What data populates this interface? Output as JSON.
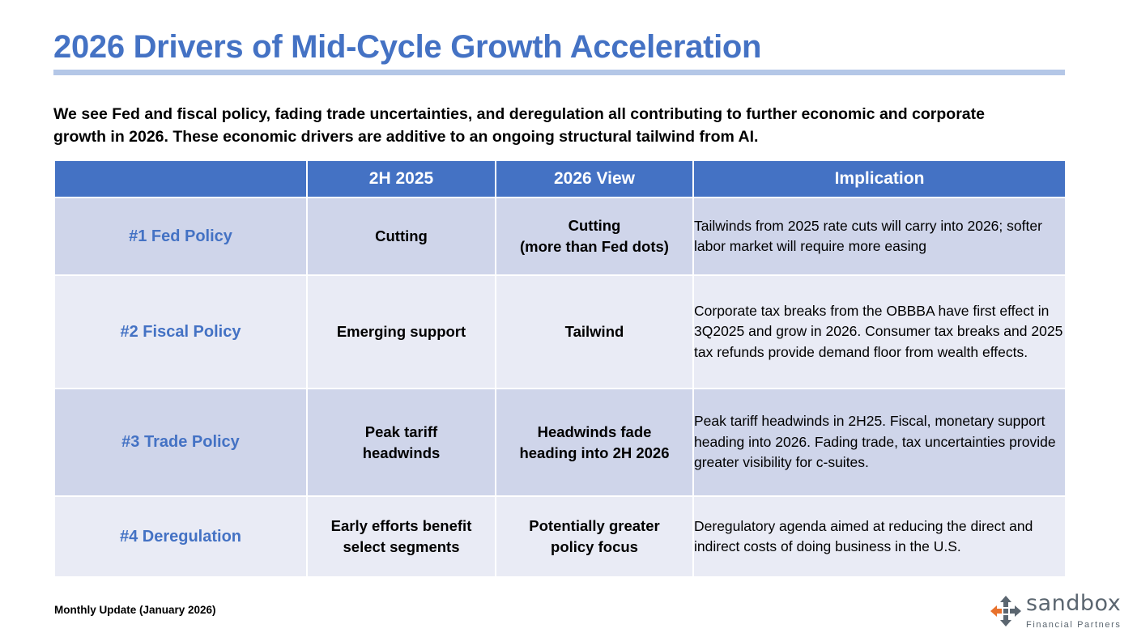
{
  "title": "2026 Drivers of Mid-Cycle Growth Acceleration",
  "intro": "We see Fed and fiscal policy, fading trade uncertainties, and deregulation all contributing to further economic and corporate growth in 2026. These economic drivers are additive to an ongoing structural tailwind from AI.",
  "table": {
    "headers": [
      "",
      "2H 2025",
      "2026 View",
      "Implication"
    ],
    "rows": [
      {
        "driver": "#1 Fed Policy",
        "h2_2025": "Cutting",
        "view_2026": "Cutting\n(more than Fed dots)",
        "implication": "Tailwinds from 2025 rate cuts will carry into 2026; softer labor market will require more easing"
      },
      {
        "driver": "#2 Fiscal Policy",
        "h2_2025": "Emerging support",
        "view_2026": "Tailwind",
        "implication": "Corporate tax breaks from the OBBBA have first effect in 3Q2025 and grow in 2026. Consumer tax breaks and 2025 tax refunds provide demand floor from wealth effects."
      },
      {
        "driver": "#3 Trade Policy",
        "h2_2025": "Peak tariff\nheadwinds",
        "view_2026": "Headwinds fade\nheading into 2H 2026",
        "implication": "Peak tariff headwinds in 2H25. Fiscal, monetary support heading into 2026. Fading trade, tax uncertainties provide greater visibility for c-suites."
      },
      {
        "driver": "#4 Deregulation",
        "h2_2025": "Early efforts benefit\nselect segments",
        "view_2026": "Potentially greater\npolicy focus",
        "implication": "Deregulatory agenda aimed at reducing the direct and indirect costs of doing business in the U.S."
      }
    ]
  },
  "footer": "Monthly Update (January 2026)",
  "logo": {
    "icon": "compass-arrows-icon",
    "name": "sandbox",
    "subtitle": "Financial Partners"
  },
  "colors": {
    "accent": "#4472C4",
    "rule": "#B4C7E7",
    "row_dark": "#CFD5EA",
    "row_light": "#E9EBF5",
    "logo_orange": "#E8712C",
    "logo_gray": "#5B6670"
  }
}
